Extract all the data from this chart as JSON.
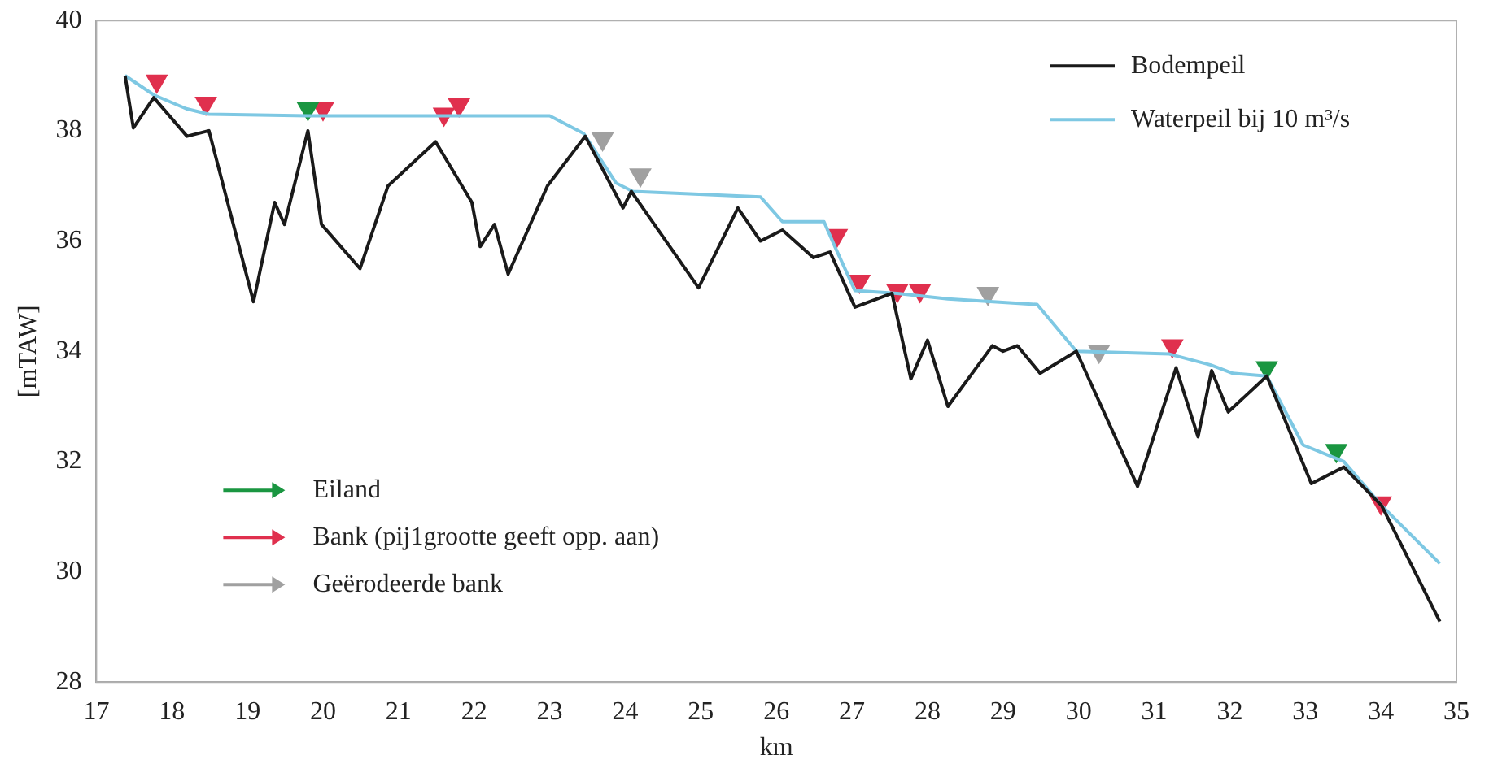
{
  "chart_data": {
    "type": "line",
    "xlabel": "km",
    "ylabel": "[mTAW]",
    "xlim": [
      17,
      35
    ],
    "xticks": [
      17,
      18,
      19,
      20,
      21,
      22,
      23,
      24,
      25,
      26,
      27,
      28,
      29,
      30,
      31,
      32,
      33,
      34,
      35
    ],
    "ylim": [
      28,
      40
    ],
    "yticks": [
      28,
      30,
      32,
      34,
      36,
      38,
      40
    ],
    "grid": false,
    "legend": "top right",
    "marker": "none",
    "line_style": "solid",
    "series": [
      {
        "name": "Bodempeil",
        "color": "#1a1a1a",
        "x": [
          17.38,
          17.49,
          17.76,
          18.2,
          18.49,
          19.08,
          19.36,
          19.49,
          19.8,
          19.98,
          20.49,
          20.86,
          21.49,
          21.97,
          22.08,
          22.27,
          22.45,
          22.97,
          23.47,
          23.97,
          24.08,
          24.97,
          25.49,
          25.79,
          26.08,
          26.49,
          26.71,
          27.04,
          27.53,
          27.78,
          28.0,
          28.27,
          28.86,
          29.0,
          29.19,
          29.49,
          29.97,
          30.78,
          31.29,
          31.58,
          31.76,
          31.98,
          32.49,
          33.08,
          33.51,
          34.01,
          34.78
        ],
        "values": [
          39.0,
          38.05,
          38.6,
          37.9,
          38.0,
          34.9,
          36.7,
          36.3,
          38.0,
          36.3,
          35.5,
          37.0,
          37.8,
          36.7,
          35.9,
          36.3,
          35.4,
          37.0,
          37.9,
          36.6,
          36.9,
          35.15,
          36.6,
          36.0,
          36.2,
          35.7,
          35.8,
          34.8,
          35.05,
          33.5,
          34.2,
          33.0,
          34.1,
          34.0,
          34.1,
          33.6,
          34.0,
          31.55,
          33.7,
          32.45,
          33.65,
          32.9,
          33.55,
          31.6,
          31.9,
          31.2,
          29.1
        ]
      },
      {
        "name": "Waterpeil bij 10 m³/s",
        "color": "#7ec8e3",
        "x": [
          17.38,
          17.76,
          18.19,
          18.49,
          19.8,
          23.0,
          23.45,
          23.88,
          24.1,
          25.79,
          26.08,
          26.63,
          26.78,
          27.04,
          27.6,
          28.27,
          29.45,
          29.97,
          31.2,
          31.75,
          32.04,
          32.49,
          32.97,
          33.51,
          34.01,
          34.78
        ],
        "values": [
          39.0,
          38.65,
          38.4,
          38.3,
          38.27,
          38.27,
          37.95,
          37.05,
          36.9,
          36.8,
          36.35,
          36.35,
          35.88,
          35.1,
          35.05,
          34.95,
          34.85,
          34.0,
          33.95,
          33.75,
          33.6,
          33.55,
          32.3,
          32.0,
          31.2,
          30.15
        ]
      },
      {
        "name": "Eiland",
        "type": "scatter",
        "marker": "triangle",
        "color": "#1a9641",
        "x": [
          19.8,
          32.49,
          33.41
        ],
        "values": [
          38.4,
          33.7,
          32.2
        ]
      },
      {
        "name": "Bank (pij1grootte geeft opp. aan)",
        "type": "scatter",
        "marker": "triangle",
        "color": "#e0304e",
        "x": [
          17.8,
          18.45,
          20.0,
          21.6,
          21.8,
          26.8,
          27.1,
          27.6,
          27.9,
          31.24,
          34.0
        ],
        "values": [
          38.9,
          38.5,
          38.4,
          38.3,
          38.47,
          36.1,
          35.27,
          35.1,
          35.1,
          34.1,
          31.25
        ]
      },
      {
        "name": "Geërodeerde bank",
        "type": "scatter",
        "marker": "triangle",
        "color": "#a0a0a0",
        "x": [
          23.7,
          24.2,
          28.8,
          30.27
        ],
        "values": [
          37.85,
          37.2,
          35.05,
          34.0
        ]
      }
    ]
  }
}
